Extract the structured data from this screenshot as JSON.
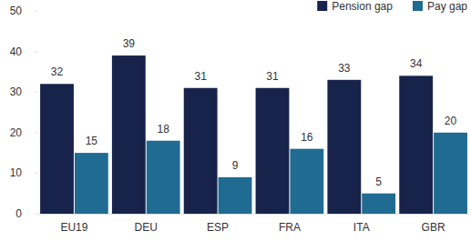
{
  "chart_data": {
    "type": "bar",
    "categories": [
      "EU19",
      "DEU",
      "ESP",
      "FRA",
      "ITA",
      "GBR"
    ],
    "series": [
      {
        "name": "Pension gap",
        "color": "#17234b",
        "values": [
          32,
          39,
          31,
          31,
          33,
          34
        ]
      },
      {
        "name": "Pay gap",
        "color": "#1f6b92",
        "values": [
          15,
          18,
          9,
          16,
          5,
          20
        ]
      }
    ],
    "ylim": [
      0,
      50
    ],
    "yticks": [
      0,
      10,
      20,
      30,
      40,
      50
    ],
    "grid": false,
    "legend": "top-right",
    "data_labels": true
  }
}
